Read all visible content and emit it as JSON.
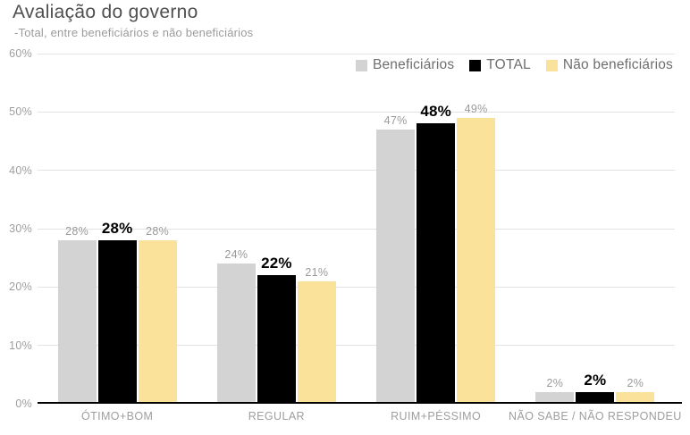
{
  "header": {
    "title": "Avaliação do governo",
    "subtitle": "-Total, entre beneficiários e não beneficiários"
  },
  "chart_data": {
    "type": "bar",
    "title": "Avaliação do governo",
    "subtitle": "-Total, entre beneficiários e não beneficiários",
    "categories": [
      "ÓTIMO+BOM",
      "REGULAR",
      "RUIM+PÉSSIMO",
      "NÃO SABE / NÃO RESPONDEU"
    ],
    "series": [
      {
        "name": "Beneficiários",
        "color": "#d3d3d3",
        "values": [
          28,
          24,
          47,
          2
        ],
        "emphasis": false
      },
      {
        "name": "TOTAL",
        "color": "#000000",
        "values": [
          28,
          22,
          48,
          2
        ],
        "emphasis": true
      },
      {
        "name": "Não beneficiários",
        "color": "#fbe29b",
        "values": [
          28,
          21,
          49,
          2
        ],
        "emphasis": false
      }
    ],
    "value_suffix": "%",
    "y_axis": {
      "min": 0,
      "max": 60,
      "step": 10,
      "tick_labels": [
        "0%",
        "10%",
        "20%",
        "30%",
        "40%",
        "50%",
        "60%"
      ]
    },
    "grid": true,
    "legend_position": "top-right",
    "colors": {
      "grid": "#e2e2e2",
      "axis": "#000000",
      "tick_text": "#9e9e9e",
      "value_label": "#9a9a9a",
      "value_label_emphasis": "#000000",
      "legend_text": "#6e6e6e",
      "title_text": "#4f4f4f",
      "subtitle_text": "#9b9b9b"
    }
  }
}
